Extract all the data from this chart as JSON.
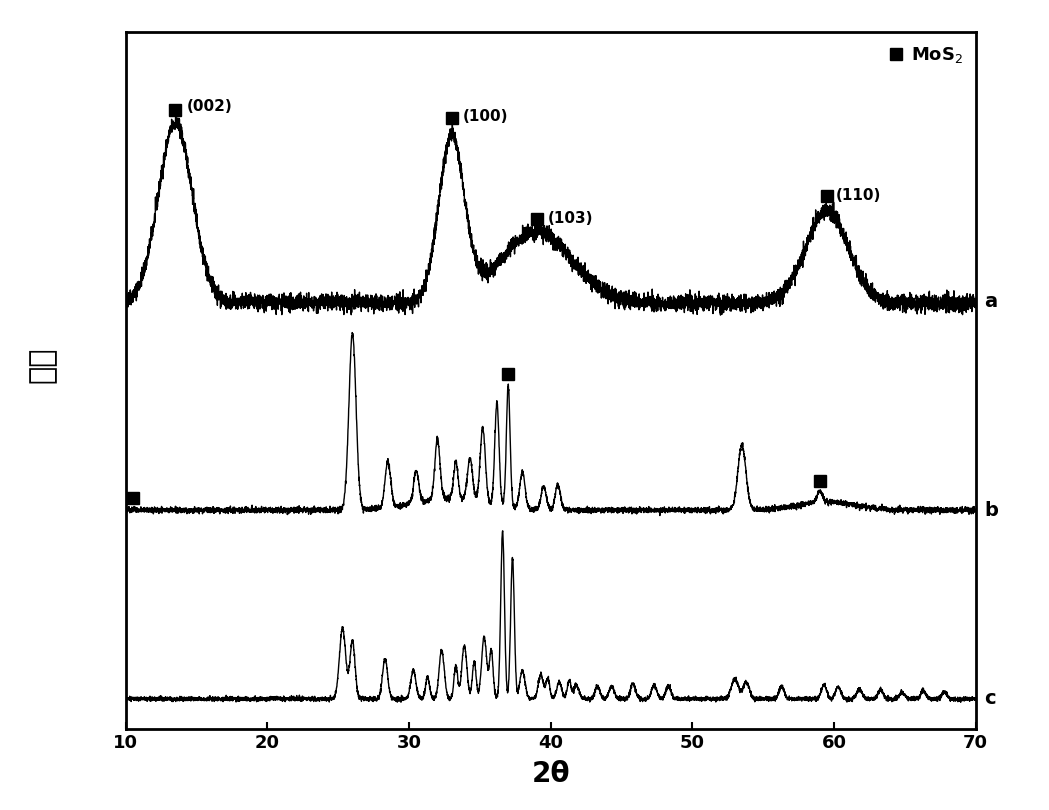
{
  "xlabel": "2θ",
  "ylabel": "强度",
  "xlim": [
    10,
    70
  ],
  "line_color": "#000000",
  "background_color": "#ffffff",
  "legend_label": "MoS₂",
  "curve_a_label": "a",
  "curve_b_label": "b",
  "curve_c_label": "c",
  "mos2_markers_a": [
    13.5,
    33.0,
    39.0,
    59.5
  ],
  "mos2_markers_b": [
    10.5,
    37.0,
    59.0
  ],
  "tick_positions": [
    10,
    20,
    30,
    40,
    50,
    60,
    70
  ],
  "curve_a_peaks": [
    [
      13.5,
      1.2,
      3.5
    ],
    [
      33.0,
      0.9,
      3.2
    ],
    [
      39.0,
      2.5,
      1.4
    ],
    [
      59.5,
      1.5,
      1.8
    ]
  ],
  "curve_b_peaks": [
    [
      26.0,
      0.25,
      3.8
    ],
    [
      28.5,
      0.2,
      1.0
    ],
    [
      30.5,
      0.18,
      0.7
    ],
    [
      32.0,
      0.18,
      1.3
    ],
    [
      33.3,
      0.15,
      0.8
    ],
    [
      34.3,
      0.18,
      0.9
    ],
    [
      35.2,
      0.18,
      1.6
    ],
    [
      36.2,
      0.15,
      2.2
    ],
    [
      37.0,
      0.13,
      2.6
    ],
    [
      38.0,
      0.18,
      0.8
    ],
    [
      39.5,
      0.18,
      0.5
    ],
    [
      40.5,
      0.18,
      0.55
    ],
    [
      53.5,
      0.28,
      1.4
    ],
    [
      59.0,
      0.18,
      0.25
    ]
  ],
  "curve_c_peaks": [
    [
      25.3,
      0.22,
      1.6
    ],
    [
      26.0,
      0.18,
      1.3
    ],
    [
      28.3,
      0.18,
      0.9
    ],
    [
      30.3,
      0.18,
      0.65
    ],
    [
      31.3,
      0.14,
      0.5
    ],
    [
      32.3,
      0.18,
      1.1
    ],
    [
      33.3,
      0.13,
      0.75
    ],
    [
      33.9,
      0.18,
      1.2
    ],
    [
      34.6,
      0.13,
      0.85
    ],
    [
      35.3,
      0.18,
      1.4
    ],
    [
      35.8,
      0.13,
      1.1
    ],
    [
      36.6,
      0.13,
      3.8
    ],
    [
      37.3,
      0.13,
      3.2
    ],
    [
      38.0,
      0.18,
      0.65
    ],
    [
      39.3,
      0.18,
      0.55
    ],
    [
      39.8,
      0.13,
      0.45
    ],
    [
      40.6,
      0.18,
      0.38
    ],
    [
      41.3,
      0.13,
      0.42
    ],
    [
      41.8,
      0.18,
      0.32
    ],
    [
      43.3,
      0.18,
      0.28
    ],
    [
      44.3,
      0.18,
      0.28
    ],
    [
      45.8,
      0.18,
      0.35
    ],
    [
      47.3,
      0.18,
      0.32
    ],
    [
      48.3,
      0.18,
      0.28
    ],
    [
      53.0,
      0.25,
      0.45
    ],
    [
      53.8,
      0.22,
      0.38
    ],
    [
      56.3,
      0.18,
      0.28
    ],
    [
      59.3,
      0.18,
      0.32
    ],
    [
      60.3,
      0.18,
      0.28
    ],
    [
      61.8,
      0.18,
      0.22
    ],
    [
      63.3,
      0.18,
      0.2
    ],
    [
      64.8,
      0.18,
      0.15
    ],
    [
      66.3,
      0.18,
      0.18
    ],
    [
      67.8,
      0.18,
      0.16
    ]
  ]
}
